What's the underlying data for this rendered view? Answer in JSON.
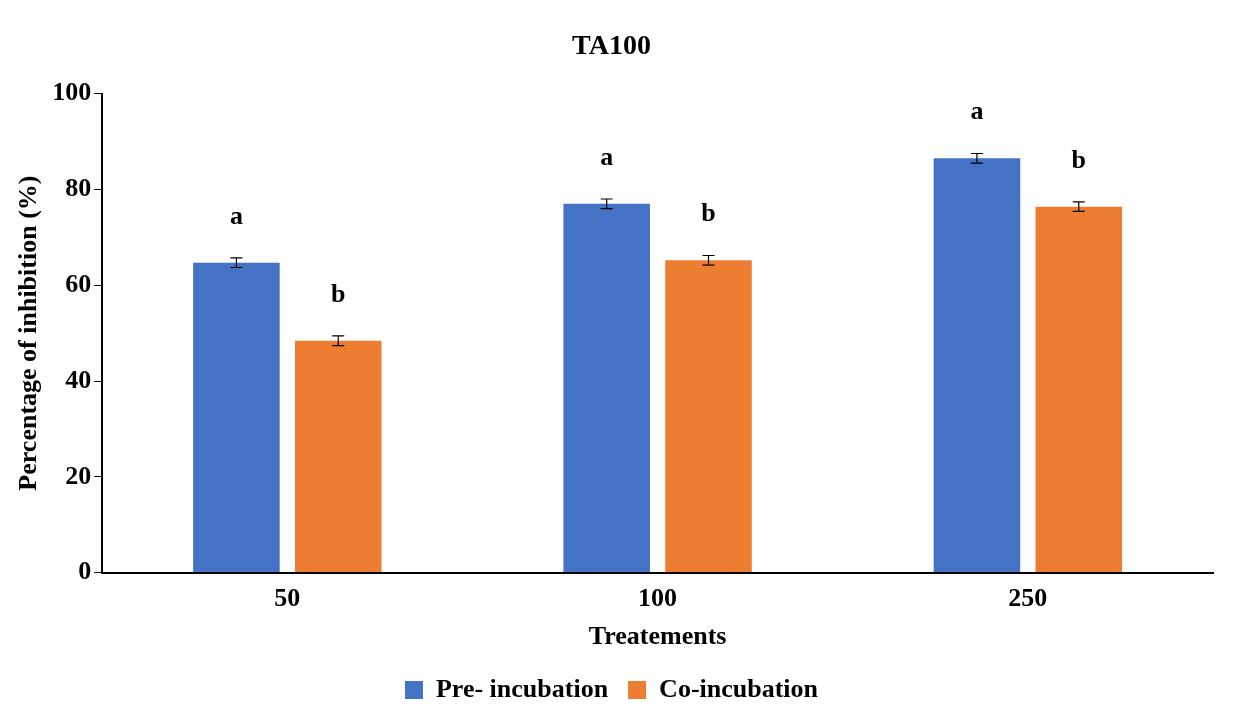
{
  "chart_data": {
    "type": "bar",
    "title": "TA100",
    "xlabel": "Treatements",
    "ylabel": "Percentage of inhibition (%)",
    "categories": [
      "50",
      "100",
      "250"
    ],
    "series": [
      {
        "name": "Pre- incubation",
        "color": "#4472c4",
        "values": [
          64.7,
          77.0,
          86.5
        ],
        "errors": [
          1,
          1,
          1
        ]
      },
      {
        "name": "Co-incubation",
        "color": "#ed7d31",
        "values": [
          48.4,
          65.2,
          76.4
        ],
        "errors": [
          1,
          1,
          1
        ]
      }
    ],
    "ylim": [
      0,
      100
    ],
    "yticks": [
      0,
      20,
      40,
      60,
      80,
      100
    ],
    "grid": false,
    "legend": "bottom",
    "annotations": [
      "a",
      "b",
      "a",
      "b",
      "a",
      "b"
    ]
  }
}
